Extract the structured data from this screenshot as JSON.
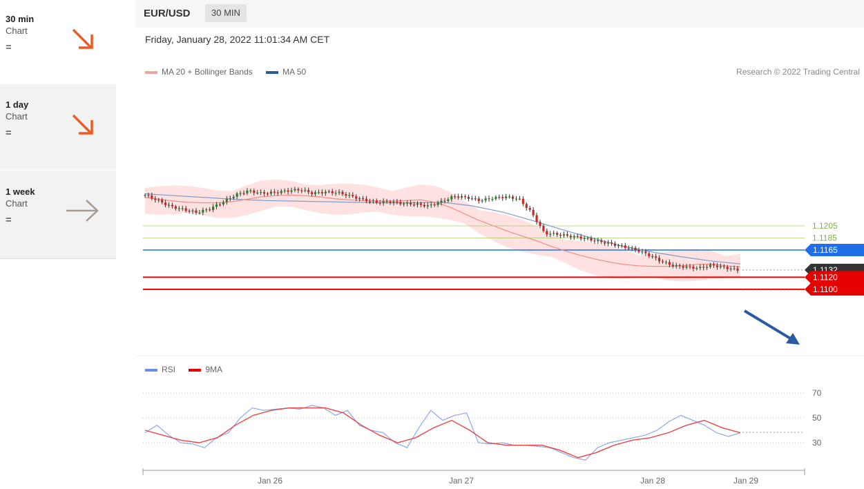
{
  "sidebar": {
    "items": [
      {
        "name": "30 min",
        "sub": "Chart",
        "eq": "=",
        "icon": "arrow-down-right-icon",
        "color": "#f05a22"
      },
      {
        "name": "1 day",
        "sub": "Chart",
        "eq": "=",
        "icon": "arrow-down-right-icon",
        "color": "#f05a22"
      },
      {
        "name": "1 week",
        "sub": "Chart",
        "eq": "=",
        "icon": "arrow-right-icon",
        "color": "#a89a92"
      }
    ]
  },
  "header": {
    "pair": "EUR/USD",
    "timeframe": "30 MIN"
  },
  "datetime": "Friday, January 28, 2022 11:01:34 AM CET",
  "legend": {
    "ma20": "MA 20 + Bollinger Bands",
    "ma50": "MA 50",
    "rsi": "RSI",
    "rsi_ma": "9MA"
  },
  "copyright": "Research © 2022 Trading Central",
  "colors": {
    "up": "#2e7d32",
    "down": "#c62828",
    "band": "#fdd7d7",
    "ma20": "#f28b82",
    "ma50": "#7f9cc9",
    "rsi": "#8aa6ef",
    "rsi_ma": "#ee4444"
  },
  "chart_data": [
    {
      "type": "line",
      "x_labels": [
        "Jan 26",
        "Jan 27",
        "Jan 28",
        "Jan 29"
      ],
      "levels": [
        {
          "value": 1.1205,
          "label": "1.1205",
          "kind": "resistance",
          "color": "#8bc34a"
        },
        {
          "value": 1.1185,
          "label": "1.1185",
          "kind": "resistance",
          "color": "#8bc34a"
        },
        {
          "value": 1.1165,
          "label": "1.1165",
          "kind": "pivot",
          "color": "#1f6feb"
        },
        {
          "value": 1.1132,
          "label": "1.1132",
          "kind": "last-price",
          "color": "#333333"
        },
        {
          "value": 1.112,
          "label": "1.1120",
          "kind": "support",
          "color": "#e60000"
        },
        {
          "value": 1.11,
          "label": "1.1100",
          "kind": "support",
          "color": "#e60000"
        }
      ],
      "price_series": [
        1.1256,
        1.1247,
        1.1237,
        1.1232,
        1.1227,
        1.1233,
        1.1244,
        1.1256,
        1.1263,
        1.1259,
        1.126,
        1.1263,
        1.1265,
        1.1259,
        1.1261,
        1.126,
        1.1254,
        1.1248,
        1.1244,
        1.1245,
        1.1242,
        1.1241,
        1.1238,
        1.1245,
        1.1254,
        1.1252,
        1.1247,
        1.1251,
        1.1253,
        1.125,
        1.1227,
        1.1193,
        1.1191,
        1.1188,
        1.1185,
        1.118,
        1.1176,
        1.1171,
        1.1166,
        1.1158,
        1.1147,
        1.1139,
        1.1137,
        1.1135,
        1.114,
        1.1136,
        1.1132
      ],
      "ma20": [
        1.1252,
        1.1249,
        1.1246,
        1.1244,
        1.1243,
        1.1243,
        1.1245,
        1.1249,
        1.1253,
        1.1255,
        1.1256,
        1.1255,
        1.1253,
        1.125,
        1.1248,
        1.1247,
        1.1246,
        1.1246,
        1.1247,
        1.1248,
        1.1244,
        1.1236,
        1.1225,
        1.1214,
        1.1205,
        1.1196,
        1.1188,
        1.118,
        1.1171,
        1.1163,
        1.1156,
        1.115,
        1.1145,
        1.1141,
        1.1139,
        1.1138,
        1.1138,
        1.1139,
        1.1141,
        1.1142,
        1.1139,
        1.1137
      ],
      "ma50": [
        1.1258,
        1.1255,
        1.1252,
        1.1249,
        1.1247,
        1.1246,
        1.1245,
        1.1244,
        1.1243,
        1.1243,
        1.1244,
        1.1238,
        1.1228,
        1.1214,
        1.1199,
        1.1185,
        1.1172,
        1.1162,
        1.1154,
        1.1147,
        1.1142
      ],
      "rsi_scale": [
        70,
        50,
        30
      ],
      "rsi": [
        38,
        44,
        36,
        30,
        29,
        26,
        34,
        38,
        50,
        58,
        56,
        57,
        58,
        57,
        60,
        58,
        52,
        56,
        44,
        40,
        38,
        30,
        26,
        42,
        56,
        48,
        52,
        54,
        30,
        29,
        30,
        28,
        28,
        27,
        26,
        22,
        18,
        16,
        26,
        30,
        32,
        34,
        36,
        40,
        47,
        52,
        48,
        44,
        38,
        35,
        38
      ],
      "rsi_ma": [
        40,
        36,
        32,
        30,
        34,
        44,
        52,
        56,
        58,
        58,
        58,
        54,
        44,
        36,
        30,
        34,
        42,
        48,
        40,
        30,
        28,
        28,
        28,
        24,
        18,
        22,
        28,
        32,
        34,
        38,
        44,
        48,
        42,
        38
      ]
    }
  ]
}
